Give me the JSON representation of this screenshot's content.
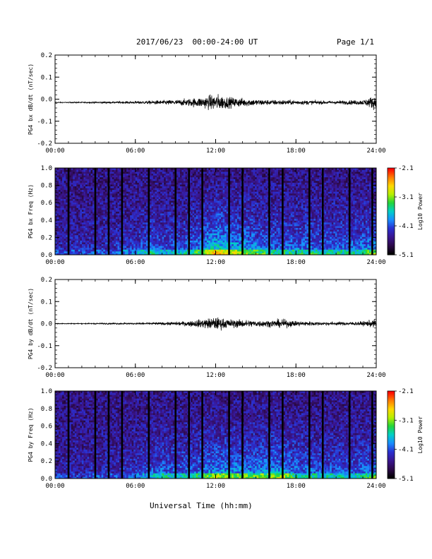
{
  "header": {
    "title": "2017/06/23  00:00-24:00 UT",
    "page": "Page 1/1"
  },
  "colors": {
    "trace": "#000000",
    "colormap": [
      "#000000",
      "#2d0a4a",
      "#3a1690",
      "#2a2fd0",
      "#1a8cff",
      "#00d0c8",
      "#22d43a",
      "#b8f000",
      "#ffd800",
      "#ff7a00",
      "#ff0000"
    ]
  },
  "chart_data": [
    {
      "type": "line",
      "ylabel": "PG4 bx dB/dt (nT/sec)",
      "ylim": [
        -0.2,
        0.2
      ],
      "yticks": [
        "0.2",
        "0.1",
        "0.0",
        "-0.1",
        "-0.2"
      ],
      "xlim": [
        0,
        24
      ],
      "xticks": [
        "00:00",
        "06:00",
        "12:00",
        "18:00",
        "24:00"
      ],
      "x_hours": [
        0,
        1,
        2,
        3,
        4,
        5,
        6,
        7,
        8,
        9,
        10,
        11,
        12,
        13,
        14,
        15,
        16,
        17,
        18,
        19,
        20,
        21,
        22,
        23,
        24
      ],
      "amplitude": [
        0.002,
        0.002,
        0.003,
        0.003,
        0.004,
        0.005,
        0.006,
        0.008,
        0.01,
        0.012,
        0.018,
        0.025,
        0.04,
        0.025,
        0.02,
        0.015,
        0.012,
        0.012,
        0.01,
        0.01,
        0.008,
        0.008,
        0.01,
        0.012,
        0.035
      ],
      "baseline": -0.015
    },
    {
      "type": "heatmap",
      "ylabel": "PG4 bx Freq (Hz)",
      "ylim": [
        0.0,
        1.0
      ],
      "yticks": [
        "1.0",
        "0.8",
        "0.6",
        "0.4",
        "0.2",
        "0.0"
      ],
      "xlim": [
        0,
        24
      ],
      "xticks": [
        "00:00",
        "06:00",
        "12:00",
        "18:00",
        "24:00"
      ],
      "colorbar": {
        "label": "Log10 Power",
        "range": [
          -5.1,
          -2.1
        ],
        "ticks": [
          "-2.1",
          "-3.1",
          "-4.1",
          "-5.1"
        ]
      },
      "gaps_hours": [
        1.0,
        3.0,
        4.0,
        5.0,
        7.0,
        9.0,
        10.0,
        11.0,
        13.0,
        14.0,
        16.0,
        17.0,
        19.0,
        20.0,
        22.0,
        23.7
      ],
      "activity": [
        0.1,
        0.1,
        0.12,
        0.12,
        0.14,
        0.16,
        0.18,
        0.28,
        0.25,
        0.22,
        0.28,
        0.35,
        0.55,
        0.45,
        0.4,
        0.35,
        0.3,
        0.3,
        0.3,
        0.3,
        0.28,
        0.28,
        0.28,
        0.3,
        0.4
      ]
    },
    {
      "type": "line",
      "ylabel": "PG4 by dB/dt (nT/sec)",
      "ylim": [
        -0.2,
        0.2
      ],
      "yticks": [
        "0.2",
        "0.1",
        "0.0",
        "-0.1",
        "-0.2"
      ],
      "xlim": [
        0,
        24
      ],
      "xticks": [
        "00:00",
        "06:00",
        "12:00",
        "18:00",
        "24:00"
      ],
      "x_hours": [
        0,
        1,
        2,
        3,
        4,
        5,
        6,
        7,
        8,
        9,
        10,
        11,
        12,
        13,
        14,
        15,
        16,
        17,
        18,
        19,
        20,
        21,
        22,
        23,
        24
      ],
      "amplitude": [
        0.002,
        0.002,
        0.002,
        0.003,
        0.003,
        0.004,
        0.004,
        0.005,
        0.006,
        0.008,
        0.012,
        0.02,
        0.03,
        0.02,
        0.018,
        0.015,
        0.015,
        0.02,
        0.012,
        0.01,
        0.008,
        0.008,
        0.008,
        0.01,
        0.02
      ],
      "baseline": 0.0
    },
    {
      "type": "heatmap",
      "ylabel": "PG4 by Freq (Hz)",
      "ylim": [
        0.0,
        1.0
      ],
      "yticks": [
        "1.0",
        "0.8",
        "0.6",
        "0.4",
        "0.2",
        "0.0"
      ],
      "xlim": [
        0,
        24
      ],
      "xticks": [
        "00:00",
        "06:00",
        "12:00",
        "18:00",
        "24:00"
      ],
      "colorbar": {
        "label": "Log10 Power",
        "range": [
          -5.1,
          -2.1
        ],
        "ticks": [
          "-2.1",
          "-3.1",
          "-4.1",
          "-5.1"
        ]
      },
      "gaps_hours": [
        1.0,
        3.0,
        4.0,
        5.0,
        7.0,
        9.0,
        10.0,
        11.0,
        13.0,
        14.0,
        16.0,
        17.0,
        19.0,
        20.0,
        22.0,
        23.7
      ],
      "activity": [
        0.1,
        0.1,
        0.1,
        0.12,
        0.12,
        0.14,
        0.16,
        0.22,
        0.28,
        0.25,
        0.28,
        0.3,
        0.4,
        0.38,
        0.35,
        0.35,
        0.38,
        0.4,
        0.3,
        0.28,
        0.26,
        0.26,
        0.26,
        0.28,
        0.35
      ]
    }
  ],
  "xaxis_title": "Universal Time (hh:mm)"
}
